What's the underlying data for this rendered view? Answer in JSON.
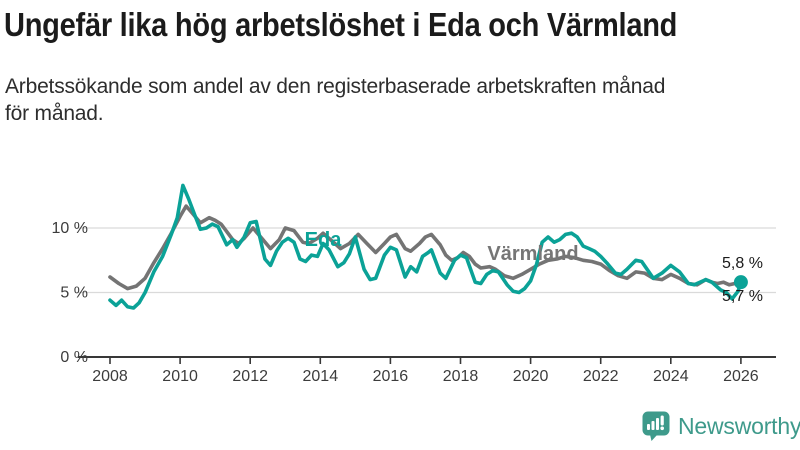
{
  "header": {
    "title": "Ungefär lika hög arbetslöshet i Eda och Värmland",
    "subtitle": "Arbetssökande som andel av den registerbaserade arbetskraften månad\nför månad."
  },
  "chart_data": {
    "type": "line",
    "title": "Ungefär lika hög arbetslöshet i Eda och Värmland",
    "subtitle": "Arbetssökande som andel av den registerbaserade arbetskraften månad för månad.",
    "grid": "horizontal-only",
    "x_axis": {
      "ticks": [
        2008,
        2010,
        2012,
        2014,
        2016,
        2018,
        2020,
        2022,
        2024,
        2026
      ],
      "range": [
        2007.2,
        2027
      ]
    },
    "y_axis": {
      "unit": "%",
      "range": [
        0,
        14
      ],
      "ticks": [
        {
          "value": 0,
          "label": "0 %"
        },
        {
          "value": 5,
          "label": "5 %"
        },
        {
          "value": 10,
          "label": "10 %"
        }
      ]
    },
    "series": [
      {
        "name": "Eda",
        "color": "#0ba297",
        "end_label": "5,8 %",
        "end_value": 5.8,
        "points": [
          [
            2008.0,
            4.4
          ],
          [
            2008.17,
            4.0
          ],
          [
            2008.33,
            4.4
          ],
          [
            2008.5,
            3.9
          ],
          [
            2008.67,
            3.8
          ],
          [
            2008.83,
            4.2
          ],
          [
            2009.0,
            5.0
          ],
          [
            2009.25,
            6.6
          ],
          [
            2009.5,
            7.8
          ],
          [
            2009.75,
            9.5
          ],
          [
            2009.92,
            10.8
          ],
          [
            2010.08,
            13.3
          ],
          [
            2010.25,
            12.2
          ],
          [
            2010.42,
            11.0
          ],
          [
            2010.58,
            9.9
          ],
          [
            2010.75,
            10.0
          ],
          [
            2010.92,
            10.3
          ],
          [
            2011.08,
            10.1
          ],
          [
            2011.33,
            8.7
          ],
          [
            2011.5,
            9.1
          ],
          [
            2011.62,
            8.5
          ],
          [
            2011.83,
            9.3
          ],
          [
            2012.0,
            10.4
          ],
          [
            2012.17,
            10.5
          ],
          [
            2012.42,
            7.6
          ],
          [
            2012.58,
            7.1
          ],
          [
            2012.75,
            8.2
          ],
          [
            2012.92,
            8.9
          ],
          [
            2013.08,
            9.2
          ],
          [
            2013.25,
            8.9
          ],
          [
            2013.42,
            7.6
          ],
          [
            2013.58,
            7.4
          ],
          [
            2013.75,
            7.9
          ],
          [
            2013.92,
            7.8
          ],
          [
            2014.08,
            8.8
          ],
          [
            2014.25,
            8.3
          ],
          [
            2014.5,
            7.0
          ],
          [
            2014.67,
            7.3
          ],
          [
            2014.83,
            8.0
          ],
          [
            2015.0,
            9.3
          ],
          [
            2015.25,
            6.8
          ],
          [
            2015.42,
            6.0
          ],
          [
            2015.58,
            6.1
          ],
          [
            2015.83,
            7.9
          ],
          [
            2016.0,
            8.5
          ],
          [
            2016.17,
            8.3
          ],
          [
            2016.42,
            6.2
          ],
          [
            2016.58,
            7.0
          ],
          [
            2016.75,
            6.6
          ],
          [
            2016.92,
            7.8
          ],
          [
            2017.08,
            8.1
          ],
          [
            2017.17,
            8.3
          ],
          [
            2017.42,
            6.5
          ],
          [
            2017.58,
            6.1
          ],
          [
            2017.83,
            7.5
          ],
          [
            2018.0,
            7.9
          ],
          [
            2018.17,
            7.7
          ],
          [
            2018.42,
            5.8
          ],
          [
            2018.58,
            5.7
          ],
          [
            2018.75,
            6.4
          ],
          [
            2018.92,
            6.7
          ],
          [
            2019.08,
            6.6
          ],
          [
            2019.33,
            5.6
          ],
          [
            2019.5,
            5.1
          ],
          [
            2019.67,
            5.0
          ],
          [
            2019.83,
            5.3
          ],
          [
            2020.0,
            5.9
          ],
          [
            2020.17,
            7.2
          ],
          [
            2020.33,
            8.9
          ],
          [
            2020.5,
            9.3
          ],
          [
            2020.67,
            8.9
          ],
          [
            2020.83,
            9.1
          ],
          [
            2021.0,
            9.5
          ],
          [
            2021.17,
            9.6
          ],
          [
            2021.33,
            9.3
          ],
          [
            2021.5,
            8.6
          ],
          [
            2021.67,
            8.4
          ],
          [
            2021.83,
            8.2
          ],
          [
            2022.0,
            7.8
          ],
          [
            2022.17,
            7.3
          ],
          [
            2022.42,
            6.5
          ],
          [
            2022.58,
            6.4
          ],
          [
            2022.75,
            6.8
          ],
          [
            2023.0,
            7.5
          ],
          [
            2023.17,
            7.4
          ],
          [
            2023.5,
            6.1
          ],
          [
            2023.75,
            6.5
          ],
          [
            2024.0,
            7.1
          ],
          [
            2024.25,
            6.6
          ],
          [
            2024.5,
            5.7
          ],
          [
            2024.67,
            5.6
          ],
          [
            2024.83,
            5.8
          ],
          [
            2025.0,
            6.0
          ],
          [
            2025.17,
            5.8
          ],
          [
            2025.42,
            5.2
          ],
          [
            2025.58,
            5.0
          ],
          [
            2025.75,
            4.5
          ],
          [
            2025.92,
            5.1
          ],
          [
            2026.0,
            5.8
          ]
        ]
      },
      {
        "name": "Värmland",
        "color": "#747474",
        "end_label": "5,7 %",
        "end_value": 5.7,
        "points": [
          [
            2008.0,
            6.2
          ],
          [
            2008.25,
            5.7
          ],
          [
            2008.5,
            5.3
          ],
          [
            2008.75,
            5.5
          ],
          [
            2009.0,
            6.1
          ],
          [
            2009.25,
            7.3
          ],
          [
            2009.5,
            8.4
          ],
          [
            2009.75,
            9.6
          ],
          [
            2010.0,
            10.9
          ],
          [
            2010.17,
            11.7
          ],
          [
            2010.33,
            11.2
          ],
          [
            2010.58,
            10.4
          ],
          [
            2010.83,
            10.8
          ],
          [
            2011.0,
            10.6
          ],
          [
            2011.17,
            10.3
          ],
          [
            2011.5,
            9.1
          ],
          [
            2011.67,
            8.8
          ],
          [
            2011.83,
            9.2
          ],
          [
            2012.08,
            10.0
          ],
          [
            2012.33,
            9.2
          ],
          [
            2012.58,
            8.4
          ],
          [
            2012.83,
            9.1
          ],
          [
            2013.0,
            10.0
          ],
          [
            2013.25,
            9.8
          ],
          [
            2013.5,
            8.9
          ],
          [
            2013.67,
            8.8
          ],
          [
            2013.92,
            9.2
          ],
          [
            2014.08,
            9.6
          ],
          [
            2014.33,
            9.0
          ],
          [
            2014.58,
            8.4
          ],
          [
            2014.83,
            8.8
          ],
          [
            2015.08,
            9.5
          ],
          [
            2015.33,
            8.8
          ],
          [
            2015.58,
            8.1
          ],
          [
            2015.83,
            8.8
          ],
          [
            2016.0,
            9.3
          ],
          [
            2016.17,
            9.5
          ],
          [
            2016.42,
            8.4
          ],
          [
            2016.58,
            8.2
          ],
          [
            2016.83,
            8.8
          ],
          [
            2017.0,
            9.3
          ],
          [
            2017.17,
            9.5
          ],
          [
            2017.42,
            8.7
          ],
          [
            2017.58,
            7.9
          ],
          [
            2017.75,
            7.5
          ],
          [
            2017.92,
            7.7
          ],
          [
            2018.08,
            8.1
          ],
          [
            2018.25,
            7.8
          ],
          [
            2018.42,
            7.2
          ],
          [
            2018.58,
            6.9
          ],
          [
            2018.83,
            7.0
          ],
          [
            2019.0,
            6.8
          ],
          [
            2019.25,
            6.3
          ],
          [
            2019.5,
            6.1
          ],
          [
            2019.75,
            6.4
          ],
          [
            2020.0,
            6.8
          ],
          [
            2020.25,
            7.2
          ],
          [
            2020.5,
            7.5
          ],
          [
            2020.75,
            7.6
          ],
          [
            2021.0,
            7.8
          ],
          [
            2021.25,
            7.7
          ],
          [
            2021.5,
            7.5
          ],
          [
            2021.75,
            7.4
          ],
          [
            2022.0,
            7.2
          ],
          [
            2022.25,
            6.7
          ],
          [
            2022.5,
            6.3
          ],
          [
            2022.75,
            6.1
          ],
          [
            2023.0,
            6.6
          ],
          [
            2023.25,
            6.5
          ],
          [
            2023.5,
            6.1
          ],
          [
            2023.75,
            6.0
          ],
          [
            2024.0,
            6.4
          ],
          [
            2024.25,
            6.1
          ],
          [
            2024.5,
            5.7
          ],
          [
            2024.75,
            5.6
          ],
          [
            2025.0,
            6.0
          ],
          [
            2025.17,
            5.8
          ],
          [
            2025.33,
            5.7
          ],
          [
            2025.5,
            5.8
          ],
          [
            2025.67,
            5.6
          ],
          [
            2025.83,
            5.7
          ],
          [
            2026.0,
            5.7
          ]
        ]
      }
    ],
    "legend_position": "inline-labels-on-lines"
  },
  "colors": {
    "eda_line": "#0ba297",
    "varmland_line": "#747474",
    "gridline": "#dadada",
    "axis": "#383838",
    "text": "#1b1b1b",
    "brand_teal": "#3e9a8b"
  },
  "footer": {
    "brand": "Newsworthy"
  }
}
